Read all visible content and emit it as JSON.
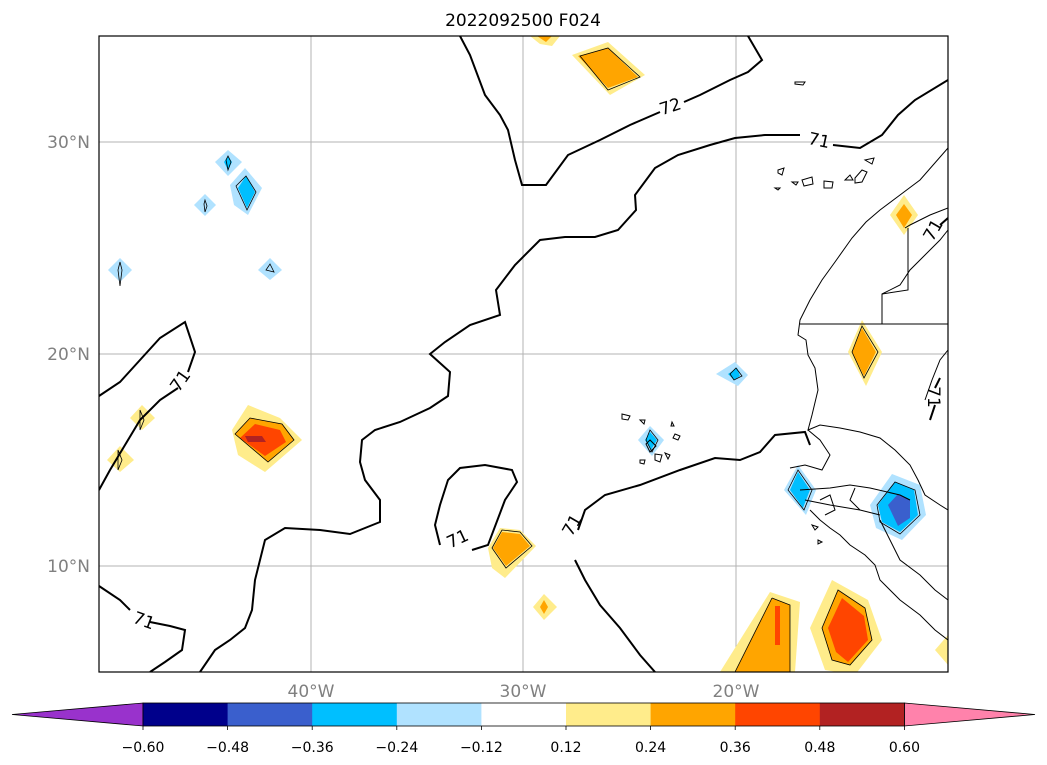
{
  "title": "2022092500 F024",
  "latitude_labels": [
    "30°N",
    "20°N",
    "10°N"
  ],
  "longitude_labels": [
    "40°W",
    "30°W",
    "20°W"
  ],
  "contour_labels": [
    "72",
    "71",
    "71",
    "71",
    "71",
    "71",
    "71",
    "71"
  ],
  "colorbar": {
    "tick_labels": [
      "−0.60",
      "−0.48",
      "−0.36",
      "−0.24",
      "−0.12",
      "0.12",
      "0.24",
      "0.36",
      "0.48",
      "0.60"
    ],
    "colors": [
      "#9932cc",
      "#00008b",
      "#3a5fcd",
      "#00bfff",
      "#b0e2ff",
      "#ffffff",
      "#ffec8b",
      "#ffa500",
      "#ff4500",
      "#b22222",
      "#ff82ab"
    ]
  },
  "colors": {
    "light_blue": "#b0e2ff",
    "blue": "#00bfff",
    "mid_blue": "#3a5fcd",
    "light_yellow": "#ffec8b",
    "orange": "#ffa500",
    "red_orange": "#ff4500",
    "dark_red": "#b22222"
  }
}
